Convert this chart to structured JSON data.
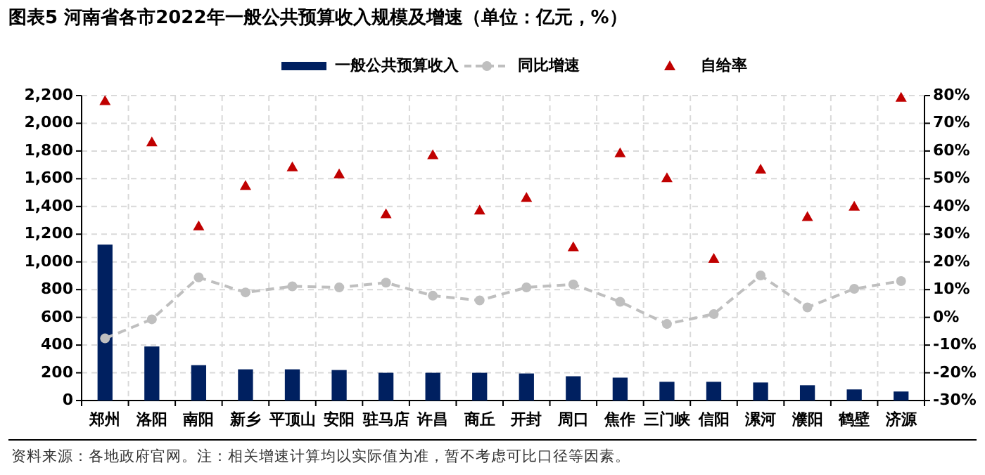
{
  "chart_data": {
    "type": "bar",
    "title": "图表5 河南省各市2022年一般公共预算收入规模及增速（单位：亿元，%）",
    "categories": [
      "郑州",
      "洛阳",
      "南阳",
      "新乡",
      "平顶山",
      "安阳",
      "驻马店",
      "许昌",
      "商丘",
      "开封",
      "周口",
      "焦作",
      "三门峡",
      "信阳",
      "漯河",
      "濮阳",
      "鹤壁",
      "济源"
    ],
    "series": [
      {
        "name": "一般公共预算收入",
        "color": "#002060",
        "values": [
          1125,
          390,
          255,
          225,
          225,
          220,
          200,
          200,
          200,
          195,
          175,
          165,
          135,
          135,
          130,
          110,
          80,
          65
        ]
      },
      {
        "name": "同比增速",
        "type": "line",
        "axis": "y2",
        "color": "#bfbfbf",
        "marker": "circle",
        "line_style": "dashed",
        "values": [
          -7.6,
          -0.7,
          14.4,
          9.0,
          11.2,
          10.8,
          12.5,
          7.8,
          6.1,
          10.8,
          11.9,
          5.6,
          -2.4,
          1.2,
          15.1,
          3.6,
          10.3,
          13.1
        ]
      },
      {
        "name": "自给率",
        "type": "scatter",
        "axis": "y2",
        "color": "#c00000",
        "marker": "triangle",
        "values": [
          78.1,
          63.2,
          32.9,
          47.5,
          54.2,
          51.7,
          37.3,
          58.6,
          38.6,
          43.2,
          25.4,
          59.3,
          50.3,
          21.2,
          53.4,
          36.3,
          40.0,
          79.3
        ]
      }
    ],
    "ylim": [
      0,
      2200
    ],
    "yticks": [
      {
        "value": 0,
        "label": "0"
      },
      {
        "value": 200,
        "label": "200"
      },
      {
        "value": 400,
        "label": "400"
      },
      {
        "value": 600,
        "label": "600"
      },
      {
        "value": 800,
        "label": "800"
      },
      {
        "value": 1000,
        "label": "1,000"
      },
      {
        "value": 1200,
        "label": "1,200"
      },
      {
        "value": 1400,
        "label": "1,400"
      },
      {
        "value": 1600,
        "label": "1,600"
      },
      {
        "value": 1800,
        "label": "1,800"
      },
      {
        "value": 2000,
        "label": "2,000"
      },
      {
        "value": 2200,
        "label": "2,200"
      }
    ],
    "y2lim": [
      -30,
      80
    ],
    "y2ticks": [
      {
        "value": -30,
        "label": "-30%"
      },
      {
        "value": -20,
        "label": "-20%"
      },
      {
        "value": -10,
        "label": "-10%"
      },
      {
        "value": 0,
        "label": "0%"
      },
      {
        "value": 10,
        "label": "10%"
      },
      {
        "value": 20,
        "label": "20%"
      },
      {
        "value": 30,
        "label": "30%"
      },
      {
        "value": 40,
        "label": "40%"
      },
      {
        "value": 50,
        "label": "50%"
      },
      {
        "value": 60,
        "label": "60%"
      },
      {
        "value": 70,
        "label": "70%"
      },
      {
        "value": 80,
        "label": "80%"
      }
    ],
    "grid": true,
    "legend": "top",
    "annotations": [
      "资料来源：各地政府官网。注：相关增速计算均以实际值为准，暂不考虑可比口径等因素。"
    ]
  }
}
